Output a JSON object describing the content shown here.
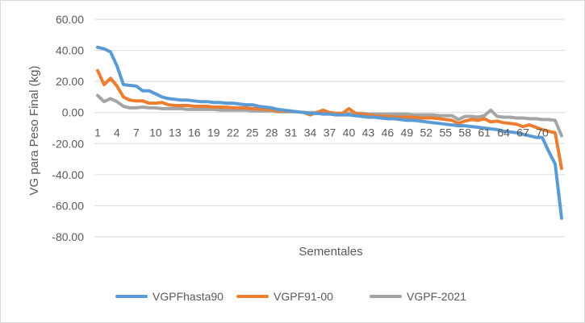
{
  "chart_data": {
    "type": "line",
    "title": "",
    "xlabel": "Sementales",
    "ylabel": "VG para Peso Final (kg)",
    "ylim": [
      -80,
      60
    ],
    "y_ticks": [
      60,
      40,
      20,
      0,
      -20,
      -40,
      -60,
      -80
    ],
    "y_tick_labels": [
      "60.00",
      "40.00",
      "20.00",
      "0.00",
      "-20.00",
      "-40.00",
      "-60.00",
      "-80.00"
    ],
    "x_ticks": [
      1,
      4,
      7,
      10,
      13,
      16,
      19,
      22,
      25,
      28,
      31,
      34,
      37,
      40,
      43,
      46,
      49,
      52,
      55,
      58,
      61,
      64,
      67,
      70
    ],
    "grid": true,
    "legend_position": "bottom",
    "series": [
      {
        "name": "VGPFhasta90",
        "color": "#5b9bd5",
        "values": [
          42,
          41,
          39,
          30,
          18,
          17.5,
          17,
          14,
          14,
          12,
          10,
          9,
          8.5,
          8,
          8,
          7.5,
          7,
          7,
          6.5,
          6.5,
          6,
          6,
          5.5,
          5,
          5,
          4,
          3.5,
          3,
          2,
          1.5,
          1,
          0.5,
          0,
          -0.5,
          -0.5,
          -1,
          -1,
          -1.5,
          -1.5,
          -1.5,
          -2,
          -2.5,
          -3,
          -3,
          -3.5,
          -4,
          -4,
          -4.5,
          -5,
          -5,
          -5.5,
          -6,
          -6.5,
          -7,
          -7.5,
          -8,
          -8.5,
          -8.5,
          -9,
          -9.5,
          -10,
          -10.5,
          -11,
          -12,
          -12.5,
          -13,
          -14,
          -15,
          -16,
          -16,
          -25,
          -33,
          -68
        ]
      },
      {
        "name": "VGPF91-00",
        "color": "#ed7d31",
        "values": [
          27,
          18,
          22,
          17,
          10,
          8,
          7.5,
          7.5,
          6,
          6,
          6.5,
          5,
          4.5,
          4.5,
          4.5,
          4,
          4,
          4,
          3.5,
          3.5,
          3.5,
          3,
          3,
          3,
          2.5,
          2.5,
          2,
          2,
          1,
          1,
          1,
          0.5,
          0,
          -1.5,
          0,
          1.5,
          0,
          -0.5,
          -0.5,
          2.5,
          -0.5,
          -1,
          -1.5,
          -2,
          -2.5,
          -2.5,
          -3,
          -3,
          -3,
          -3,
          -3.5,
          -3.5,
          -3.5,
          -4,
          -4.5,
          -5,
          -7,
          -5.5,
          -4.5,
          -5,
          -4,
          -6,
          -5.5,
          -6.5,
          -7,
          -7.5,
          -9,
          -8,
          -9.5,
          -11,
          -12,
          -13,
          -36
        ]
      },
      {
        "name": "VGPF-2021",
        "color": "#a5a5a5",
        "values": [
          11,
          7,
          9,
          7,
          4,
          3,
          3,
          3.5,
          3,
          3,
          2.5,
          2.5,
          2.5,
          2.5,
          2,
          2,
          2,
          2,
          2,
          1.5,
          1.5,
          1.5,
          1.5,
          1.5,
          1,
          1,
          1,
          1,
          0.5,
          0.5,
          0.5,
          0.5,
          0,
          0,
          0,
          0,
          -0.5,
          -0.5,
          -0.5,
          -0.5,
          -0.5,
          -0.5,
          -1,
          -1,
          -1,
          -1,
          -1,
          -1,
          -1,
          -1.5,
          -1.5,
          -1.5,
          -1.5,
          -2,
          -2,
          -2,
          -4.5,
          -2.5,
          -2.5,
          -3,
          -2,
          1.5,
          -2.5,
          -3,
          -3,
          -3.5,
          -3.5,
          -4,
          -4,
          -4.5,
          -4.5,
          -5,
          -15
        ]
      }
    ]
  }
}
